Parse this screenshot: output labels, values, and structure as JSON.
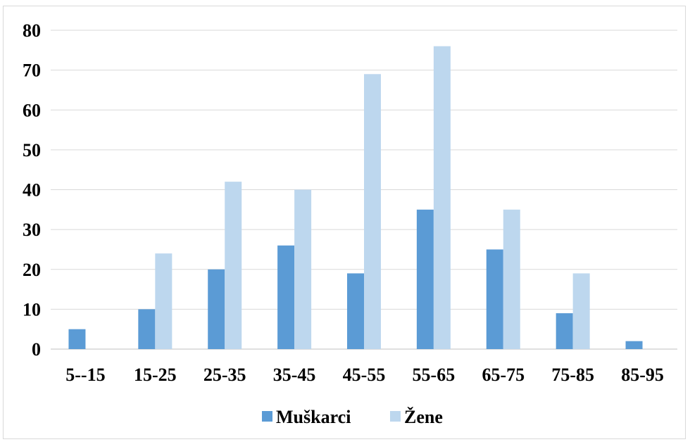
{
  "chart_data": {
    "type": "bar",
    "title": "",
    "xlabel": "",
    "ylabel": "",
    "categories": [
      "5--15",
      "15-25",
      "25-35",
      "35-45",
      "45-55",
      "55-65",
      "65-75",
      "75-85",
      "85-95"
    ],
    "series": [
      {
        "name": "Muškarci",
        "color": "#5b9bd5",
        "values": [
          5,
          10,
          20,
          26,
          19,
          35,
          25,
          9,
          2
        ]
      },
      {
        "name": "Žene",
        "color": "#bdd7ee",
        "values": [
          0,
          24,
          42,
          40,
          69,
          76,
          35,
          19,
          0
        ]
      }
    ],
    "ylim": [
      0,
      80
    ],
    "yticks": [
      0,
      10,
      20,
      30,
      40,
      50,
      60,
      70,
      80
    ],
    "grid": true,
    "legend_position": "bottom"
  }
}
